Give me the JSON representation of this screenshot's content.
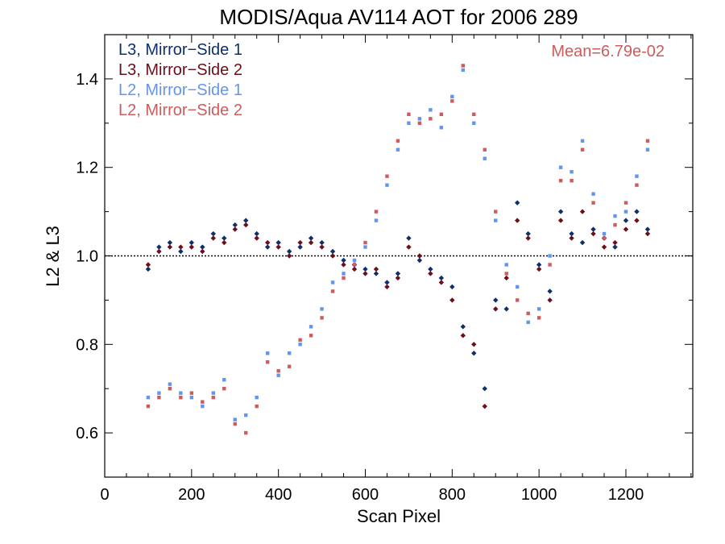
{
  "chart_data": {
    "type": "scatter",
    "title": "MODIS/Aqua AV114 AOT for 2006 289",
    "xlabel": "Scan Pixel",
    "ylabel": "L2 & L3",
    "xlim": [
      0,
      1354
    ],
    "ylim": [
      0.5,
      1.5
    ],
    "x_ticks": [
      0,
      200,
      400,
      600,
      800,
      1000,
      1200
    ],
    "x_tick_labels": [
      "0",
      "200",
      "400",
      "600",
      "800",
      "1000",
      "1200"
    ],
    "y_ticks": [
      0.6,
      0.8,
      1.0,
      1.2,
      1.4
    ],
    "y_tick_labels": [
      "0.6",
      "0.8",
      "1.0",
      "1.2",
      "1.4"
    ],
    "reference_line": 1.0,
    "legend_position": "top-left",
    "annotation": "Mean=6.79e-02",
    "annotation_color": "#cd5c5c",
    "series": [
      {
        "name": "L3, Mirror−Side 1",
        "color": "#0d2f6b",
        "x": [
          100,
          125,
          150,
          175,
          200,
          225,
          250,
          275,
          300,
          325,
          350,
          375,
          400,
          425,
          450,
          475,
          500,
          525,
          550,
          575,
          600,
          625,
          650,
          675,
          700,
          725,
          750,
          775,
          800,
          825,
          850,
          875,
          900,
          925,
          950,
          975,
          1000,
          1025,
          1050,
          1075,
          1100,
          1125,
          1150,
          1175,
          1200,
          1225,
          1250
        ],
        "y": [
          0.97,
          1.02,
          1.03,
          1.01,
          1.03,
          1.02,
          1.05,
          1.04,
          1.07,
          1.08,
          1.05,
          1.02,
          1.03,
          1.01,
          1.02,
          1.04,
          1.03,
          1.01,
          0.99,
          0.98,
          0.97,
          0.96,
          0.94,
          0.96,
          1.04,
          0.99,
          0.97,
          0.95,
          0.93,
          0.84,
          0.78,
          0.7,
          0.9,
          0.88,
          1.12,
          1.05,
          0.98,
          0.92,
          1.1,
          1.05,
          1.03,
          1.06,
          1.04,
          1.02,
          1.08,
          1.1,
          1.06
        ]
      },
      {
        "name": "L3, Mirror−Side 2",
        "color": "#6b0f1a",
        "x": [
          100,
          125,
          150,
          175,
          200,
          225,
          250,
          275,
          300,
          325,
          350,
          375,
          400,
          425,
          450,
          475,
          500,
          525,
          550,
          575,
          600,
          625,
          650,
          675,
          700,
          725,
          750,
          775,
          800,
          825,
          850,
          875,
          900,
          925,
          950,
          975,
          1000,
          1025,
          1050,
          1075,
          1100,
          1125,
          1150,
          1175,
          1200,
          1225,
          1250
        ],
        "y": [
          0.98,
          1.01,
          1.02,
          1.02,
          1.02,
          1.01,
          1.04,
          1.03,
          1.06,
          1.07,
          1.04,
          1.03,
          1.02,
          1.0,
          1.03,
          1.03,
          1.02,
          1.0,
          0.98,
          0.97,
          0.96,
          0.97,
          0.93,
          0.95,
          1.02,
          1.0,
          0.96,
          0.94,
          0.9,
          0.82,
          0.8,
          0.66,
          0.88,
          0.95,
          1.08,
          1.04,
          0.97,
          0.9,
          1.08,
          1.04,
          1.1,
          1.05,
          1.02,
          1.03,
          1.06,
          1.08,
          1.05
        ]
      },
      {
        "name": "L2, Mirror−Side 1",
        "color": "#6495ed",
        "x": [
          100,
          125,
          150,
          175,
          200,
          225,
          250,
          275,
          300,
          325,
          350,
          375,
          400,
          425,
          450,
          475,
          500,
          525,
          550,
          575,
          600,
          625,
          650,
          675,
          700,
          725,
          750,
          775,
          800,
          825,
          850,
          875,
          900,
          925,
          950,
          975,
          1000,
          1025,
          1050,
          1075,
          1100,
          1125,
          1150,
          1175,
          1200,
          1225,
          1250
        ],
        "y": [
          0.68,
          0.69,
          0.71,
          0.69,
          0.68,
          0.66,
          0.69,
          0.72,
          0.63,
          0.64,
          0.68,
          0.78,
          0.73,
          0.78,
          0.8,
          0.84,
          0.88,
          0.94,
          0.96,
          0.99,
          1.02,
          1.08,
          1.16,
          1.24,
          1.3,
          1.31,
          1.33,
          1.29,
          1.36,
          1.42,
          1.3,
          1.22,
          1.08,
          0.98,
          0.93,
          0.85,
          0.88,
          1.0,
          1.2,
          1.19,
          1.26,
          1.14,
          1.05,
          1.09,
          1.1,
          1.18,
          1.24
        ]
      },
      {
        "name": "L2, Mirror−Side 2",
        "color": "#cd5c5c",
        "x": [
          100,
          125,
          150,
          175,
          200,
          225,
          250,
          275,
          300,
          325,
          350,
          375,
          400,
          425,
          450,
          475,
          500,
          525,
          550,
          575,
          600,
          625,
          650,
          675,
          700,
          725,
          750,
          775,
          800,
          825,
          850,
          875,
          900,
          925,
          950,
          975,
          1000,
          1025,
          1050,
          1075,
          1100,
          1125,
          1150,
          1175,
          1200,
          1225,
          1250
        ],
        "y": [
          0.66,
          0.68,
          0.7,
          0.68,
          0.69,
          0.67,
          0.68,
          0.7,
          0.62,
          0.6,
          0.66,
          0.76,
          0.74,
          0.75,
          0.81,
          0.82,
          0.86,
          0.92,
          0.95,
          0.98,
          1.03,
          1.1,
          1.18,
          1.26,
          1.32,
          1.3,
          1.31,
          1.32,
          1.35,
          1.43,
          1.32,
          1.24,
          1.1,
          0.96,
          0.9,
          0.87,
          0.86,
          0.98,
          1.17,
          1.17,
          1.24,
          1.12,
          1.04,
          1.07,
          1.12,
          1.16,
          1.26
        ]
      }
    ]
  }
}
